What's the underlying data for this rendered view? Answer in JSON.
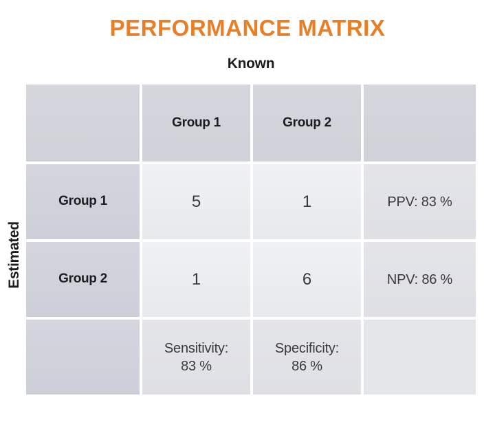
{
  "title": "PERFORMANCE MATRIX",
  "axes": {
    "known": "Known",
    "estimated": "Estimated"
  },
  "chart_data": {
    "type": "table",
    "title": "PERFORMANCE MATRIX",
    "x_axis_label": "Known",
    "y_axis_label": "Estimated",
    "columns": [
      "Group 1",
      "Group 2"
    ],
    "rows": [
      "Group 1",
      "Group 2"
    ],
    "values": [
      [
        5,
        1
      ],
      [
        1,
        6
      ]
    ],
    "metrics": {
      "ppv": "83 %",
      "npv": "86 %",
      "sensitivity": "83 %",
      "specificity": "86 %"
    }
  },
  "labels": {
    "ppv": "PPV: 83 %",
    "npv": "NPV: 86 %",
    "sensitivity_title": "Sensitivity:",
    "sensitivity_value": "83 %",
    "specificity_title": "Specificity:",
    "specificity_value": "86 %"
  },
  "colors": {
    "accent": "#e87e26",
    "page_bg": "#ffffff",
    "header_cell_top": "#d5d6dd",
    "header_cell_bottom": "#d0d2d9",
    "label_cell_top": "#d4d5de",
    "label_cell_bottom": "#cccfd9",
    "data_cell_top": "#f0f1f4",
    "data_cell_bottom": "#e7e9ed",
    "metric_cell_top": "#e4e5e9",
    "metric_cell_bottom": "#dfe0e5",
    "bottom_right_cell": "#e5e6ea",
    "text_dark": "#1d1d1f",
    "text_body": "#3a3a3d"
  }
}
